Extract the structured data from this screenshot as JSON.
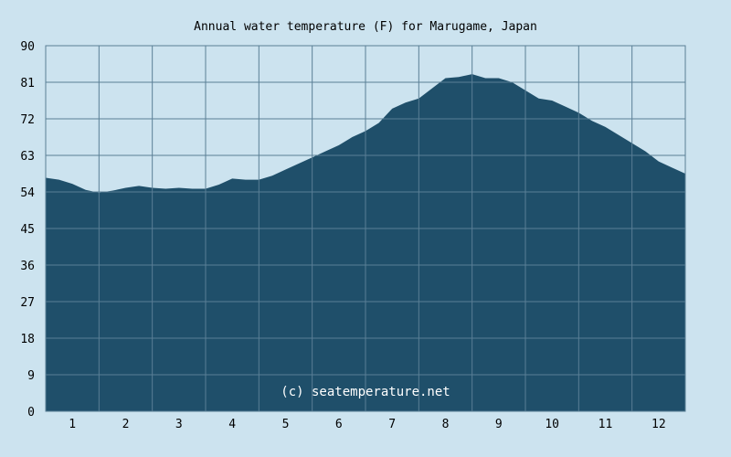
{
  "chart_data": {
    "type": "area",
    "title": "Annual water temperature (F) for Marugame, Japan",
    "watermark": "(c) seatemperature.net",
    "xlabel": "",
    "ylabel": "",
    "x_ticks": [
      "1",
      "2",
      "3",
      "4",
      "5",
      "6",
      "7",
      "8",
      "9",
      "10",
      "11",
      "12"
    ],
    "y_ticks": [
      "0",
      "9",
      "18",
      "27",
      "36",
      "45",
      "54",
      "63",
      "72",
      "81",
      "90"
    ],
    "ylim": [
      0,
      90
    ],
    "xlim": [
      0.5,
      12.5
    ],
    "grid": true,
    "colors": {
      "background": "#cce3ef",
      "fill": "#1f4f6a",
      "grid": "#5a7f96"
    },
    "series": [
      {
        "x": [
          0.5,
          0.75,
          1.0,
          1.25,
          1.5,
          1.75,
          2.0,
          2.25,
          2.5,
          2.75,
          3.0,
          3.25,
          3.5,
          3.75,
          4.0,
          4.25,
          4.5,
          4.75,
          5.0,
          5.25,
          5.5,
          5.75,
          6.0,
          6.25,
          6.5,
          6.75,
          7.0,
          7.25,
          7.5,
          7.75,
          8.0,
          8.25,
          8.5,
          8.75,
          9.0,
          9.25,
          9.5,
          9.75,
          10.0,
          10.25,
          10.5,
          10.75,
          11.0,
          11.25,
          11.5,
          11.75,
          12.0,
          12.25,
          12.5
        ],
        "values": [
          57.5,
          57.0,
          56.0,
          54.5,
          53.8,
          54.3,
          55.0,
          55.5,
          55.0,
          54.8,
          55.0,
          54.8,
          54.8,
          55.8,
          57.3,
          57.0,
          57.0,
          58.0,
          59.5,
          61.0,
          62.5,
          64.0,
          65.5,
          67.5,
          69.0,
          71.0,
          74.5,
          76.0,
          77.0,
          79.5,
          82.0,
          82.3,
          83.0,
          82.0,
          82.0,
          81.0,
          79.0,
          77.0,
          76.5,
          75.0,
          73.5,
          71.5,
          70.0,
          68.0,
          66.0,
          64.0,
          61.5,
          60.0,
          58.5
        ]
      }
    ]
  }
}
